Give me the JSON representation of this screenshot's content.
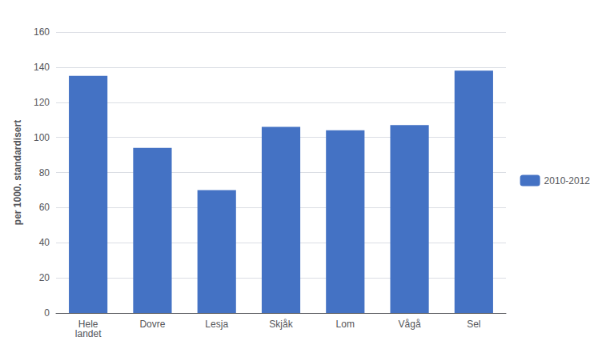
{
  "chart_data": {
    "type": "bar",
    "categories": [
      "Hele\nlandet",
      "Dovre",
      "Lesja",
      "Skjåk",
      "Lom",
      "Vågå",
      "Sel"
    ],
    "series": [
      {
        "name": "2010-2012",
        "color": "#4472C4",
        "values": [
          135,
          94,
          70,
          106,
          104,
          107,
          138
        ]
      }
    ],
    "ylabel": "per 1000. standardisert",
    "ylim": [
      0,
      160
    ],
    "yticks": [
      0,
      20,
      40,
      60,
      80,
      100,
      120,
      140,
      160
    ],
    "grid": true,
    "legend": "right"
  }
}
